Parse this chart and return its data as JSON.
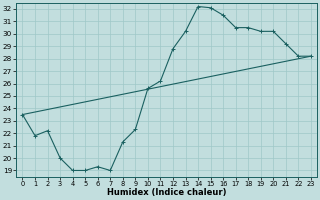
{
  "xlabel": "Humidex (Indice chaleur)",
  "xlim": [
    -0.5,
    23.5
  ],
  "ylim": [
    18.5,
    32.5
  ],
  "xticks": [
    0,
    1,
    2,
    3,
    4,
    5,
    6,
    7,
    8,
    9,
    10,
    11,
    12,
    13,
    14,
    15,
    16,
    17,
    18,
    19,
    20,
    21,
    22,
    23
  ],
  "yticks": [
    19,
    20,
    21,
    22,
    23,
    24,
    25,
    26,
    27,
    28,
    29,
    30,
    31,
    32
  ],
  "bg_color": "#c2dede",
  "line_color": "#1a6060",
  "grid_color": "#9fc8c8",
  "curve1_x": [
    0,
    1,
    2,
    3,
    4,
    5,
    6,
    7,
    8,
    9,
    10,
    11,
    12,
    13,
    14,
    15,
    16,
    17,
    18,
    19,
    20,
    21,
    22,
    23
  ],
  "curve1_y": [
    23.5,
    21.8,
    22.2,
    20.0,
    19.0,
    19.0,
    19.3,
    19.0,
    21.3,
    22.3,
    25.6,
    26.2,
    28.8,
    30.2,
    32.2,
    32.1,
    31.5,
    30.5,
    30.5,
    30.2,
    30.2,
    29.2,
    28.2,
    28.2
  ],
  "curve2_x": [
    0,
    23
  ],
  "curve2_y": [
    23.5,
    28.2
  ]
}
